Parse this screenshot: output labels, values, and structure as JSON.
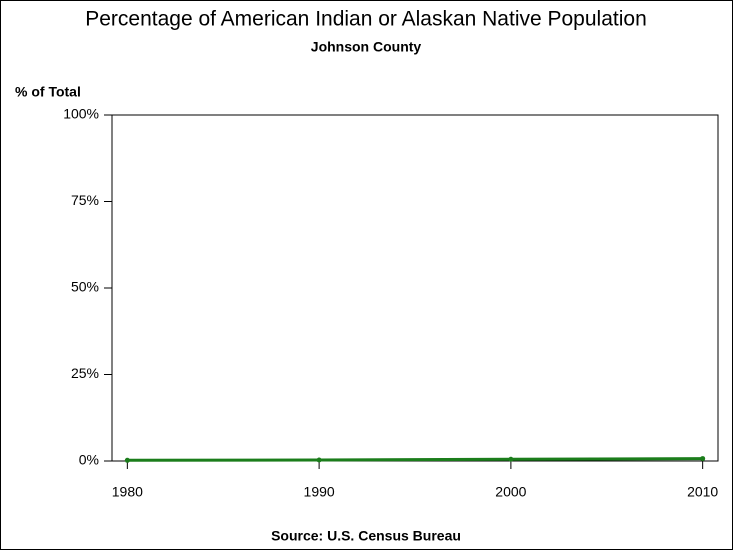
{
  "chart_data": {
    "type": "line",
    "title": "Percentage of American Indian or Alaskan Native Population",
    "subtitle": "Johnson County",
    "y_label": "% of Total",
    "source": "Source: U.S. Census Bureau",
    "x": [
      1980,
      1990,
      2000,
      2010
    ],
    "series": [
      {
        "name": "Johnson County",
        "color": "#1b7d1b",
        "values": [
          0.2,
          0.3,
          0.5,
          0.7
        ]
      }
    ],
    "xlim": [
      1979.2,
      2010.8
    ],
    "xticks": [
      1980,
      1990,
      2000,
      2010
    ],
    "ylim": [
      0,
      100
    ],
    "yticks": [
      {
        "value": 0,
        "label": "0%"
      },
      {
        "value": 25,
        "label": "25%"
      },
      {
        "value": 50,
        "label": "50%"
      },
      {
        "value": 75,
        "label": "75%"
      },
      {
        "value": 100,
        "label": "100%"
      }
    ]
  }
}
